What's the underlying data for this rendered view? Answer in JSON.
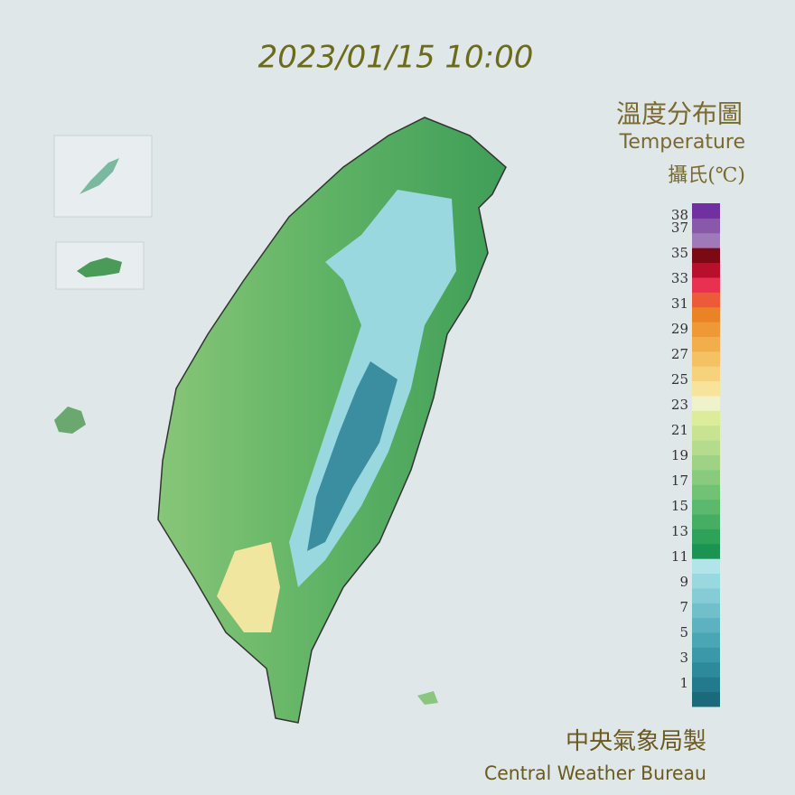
{
  "header": {
    "datetime": "2023/01/15 10:00",
    "title_zh": "溫度分布圖",
    "title_en": "Temperature",
    "unit": "攝氏(℃)"
  },
  "legend": {
    "labels": [
      38,
      37,
      35,
      33,
      31,
      29,
      27,
      25,
      23,
      21,
      19,
      17,
      15,
      13,
      11,
      9,
      7,
      5,
      3,
      1
    ],
    "colors": [
      "#1b6a7c",
      "#237a8c",
      "#2d8a9a",
      "#3a98a8",
      "#4aa6b4",
      "#5cb2c0",
      "#70bfcb",
      "#86ccd6",
      "#9ad8e0",
      "#b2e4ea",
      "#1a9450",
      "#2ea258",
      "#45ae62",
      "#5cb86c",
      "#72c276",
      "#88ca7e",
      "#9ed386",
      "#b4dc8c",
      "#c8e492",
      "#dcec9a",
      "#f0f2cc",
      "#f7e39a",
      "#f5d37c",
      "#f3c262",
      "#f1ae4a",
      "#ee9836",
      "#ea8226",
      "#ec5a3a",
      "#e83050",
      "#b8102c",
      "#7c0a14",
      "#a07ab8",
      "#8a58a8",
      "#7030a0"
    ]
  },
  "footer": {
    "agency_zh": "中央氣象局製",
    "agency_en": "Central Weather Bureau"
  }
}
